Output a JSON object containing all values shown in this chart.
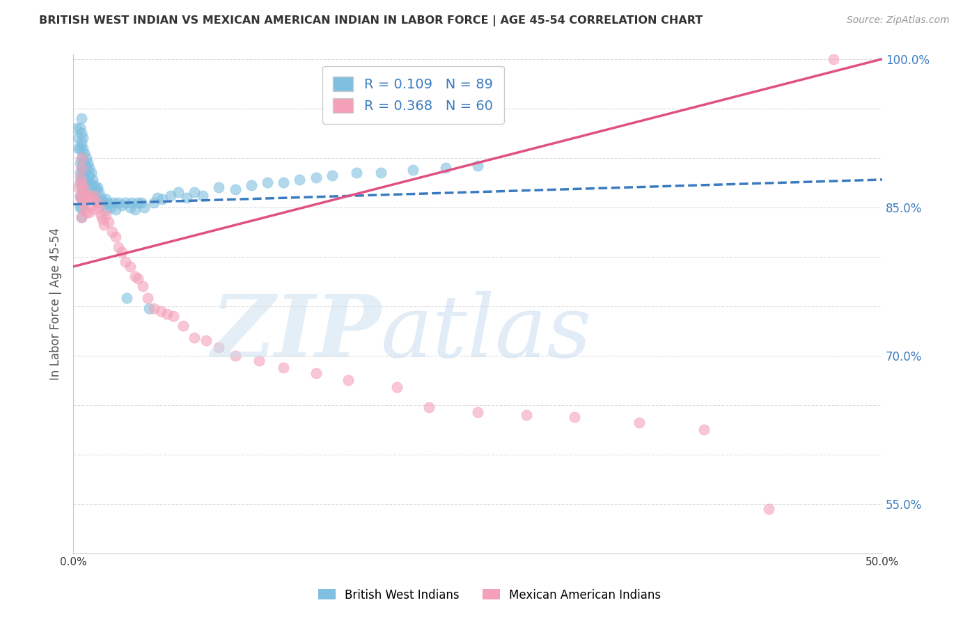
{
  "title": "BRITISH WEST INDIAN VS MEXICAN AMERICAN INDIAN IN LABOR FORCE | AGE 45-54 CORRELATION CHART",
  "source": "Source: ZipAtlas.com",
  "ylabel": "In Labor Force | Age 45-54",
  "xmin": 0.0,
  "xmax": 0.5,
  "ymin": 0.5,
  "ymax": 1.005,
  "blue_R": 0.109,
  "blue_N": 89,
  "pink_R": 0.368,
  "pink_N": 60,
  "blue_color": "#7fbfdf",
  "pink_color": "#f4a0b8",
  "blue_line_color": "#3a7abf",
  "pink_line_color": "#e05080",
  "legend_label_blue": "British West Indians",
  "legend_label_pink": "Mexican American Indians",
  "blue_line_x0": 0.0,
  "blue_line_y0": 0.853,
  "blue_line_x1": 0.5,
  "blue_line_y1": 0.878,
  "pink_line_x0": 0.0,
  "pink_line_y0": 0.79,
  "pink_line_x1": 0.5,
  "pink_line_y1": 1.0,
  "blue_scatter_x": [
    0.002,
    0.003,
    0.003,
    0.004,
    0.004,
    0.004,
    0.004,
    0.004,
    0.004,
    0.004,
    0.005,
    0.005,
    0.005,
    0.005,
    0.005,
    0.005,
    0.005,
    0.005,
    0.005,
    0.005,
    0.006,
    0.006,
    0.006,
    0.006,
    0.006,
    0.007,
    0.007,
    0.007,
    0.007,
    0.008,
    0.008,
    0.008,
    0.009,
    0.009,
    0.01,
    0.01,
    0.01,
    0.01,
    0.011,
    0.011,
    0.012,
    0.012,
    0.013,
    0.013,
    0.014,
    0.015,
    0.015,
    0.016,
    0.017,
    0.018,
    0.019,
    0.02,
    0.02,
    0.022,
    0.023,
    0.025,
    0.026,
    0.028,
    0.03,
    0.032,
    0.033,
    0.035,
    0.036,
    0.038,
    0.04,
    0.042,
    0.044,
    0.047,
    0.05,
    0.052,
    0.055,
    0.06,
    0.065,
    0.07,
    0.075,
    0.08,
    0.09,
    0.1,
    0.11,
    0.12,
    0.13,
    0.14,
    0.15,
    0.16,
    0.175,
    0.19,
    0.21,
    0.23,
    0.25
  ],
  "blue_scatter_y": [
    0.93,
    0.92,
    0.91,
    0.93,
    0.91,
    0.895,
    0.885,
    0.875,
    0.862,
    0.85,
    0.94,
    0.925,
    0.915,
    0.9,
    0.89,
    0.88,
    0.87,
    0.86,
    0.85,
    0.84,
    0.92,
    0.91,
    0.895,
    0.885,
    0.875,
    0.905,
    0.895,
    0.885,
    0.872,
    0.9,
    0.89,
    0.878,
    0.895,
    0.882,
    0.89,
    0.882,
    0.872,
    0.862,
    0.885,
    0.873,
    0.878,
    0.865,
    0.872,
    0.862,
    0.869,
    0.87,
    0.858,
    0.865,
    0.86,
    0.856,
    0.853,
    0.858,
    0.847,
    0.854,
    0.85,
    0.855,
    0.848,
    0.855,
    0.852,
    0.855,
    0.758,
    0.85,
    0.855,
    0.848,
    0.855,
    0.855,
    0.85,
    0.748,
    0.855,
    0.86,
    0.858,
    0.862,
    0.865,
    0.86,
    0.865,
    0.862,
    0.87,
    0.868,
    0.872,
    0.875,
    0.875,
    0.878,
    0.88,
    0.882,
    0.885,
    0.885,
    0.888,
    0.89,
    0.892
  ],
  "pink_scatter_x": [
    0.003,
    0.004,
    0.004,
    0.005,
    0.005,
    0.005,
    0.005,
    0.005,
    0.006,
    0.006,
    0.007,
    0.007,
    0.008,
    0.008,
    0.009,
    0.01,
    0.01,
    0.011,
    0.012,
    0.013,
    0.014,
    0.015,
    0.016,
    0.017,
    0.018,
    0.019,
    0.02,
    0.022,
    0.024,
    0.026,
    0.028,
    0.03,
    0.032,
    0.035,
    0.038,
    0.04,
    0.043,
    0.046,
    0.05,
    0.054,
    0.058,
    0.062,
    0.068,
    0.075,
    0.082,
    0.09,
    0.1,
    0.115,
    0.13,
    0.15,
    0.17,
    0.2,
    0.22,
    0.25,
    0.28,
    0.31,
    0.35,
    0.39,
    0.43,
    0.47
  ],
  "pink_scatter_y": [
    0.87,
    0.88,
    0.86,
    0.9,
    0.89,
    0.875,
    0.862,
    0.84,
    0.87,
    0.855,
    0.868,
    0.848,
    0.862,
    0.845,
    0.858,
    0.862,
    0.845,
    0.852,
    0.858,
    0.862,
    0.848,
    0.855,
    0.85,
    0.842,
    0.838,
    0.832,
    0.842,
    0.835,
    0.825,
    0.82,
    0.81,
    0.805,
    0.795,
    0.79,
    0.78,
    0.778,
    0.77,
    0.758,
    0.748,
    0.745,
    0.742,
    0.74,
    0.73,
    0.718,
    0.715,
    0.708,
    0.7,
    0.695,
    0.688,
    0.682,
    0.675,
    0.668,
    0.648,
    0.643,
    0.64,
    0.638,
    0.632,
    0.625,
    0.545,
    1.0
  ]
}
